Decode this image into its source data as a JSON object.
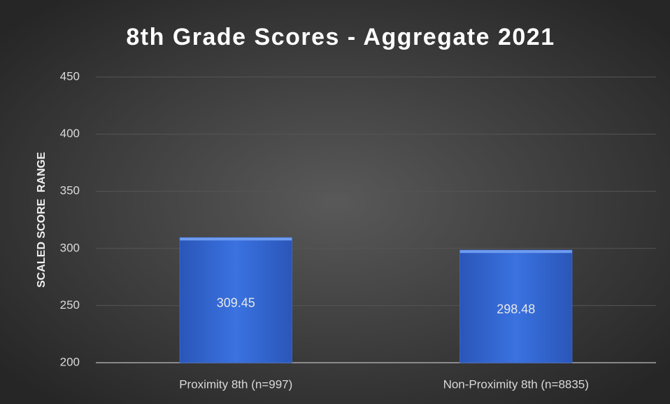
{
  "chart_data": {
    "type": "bar",
    "title": "8th Grade Scores - Aggregate 2021",
    "y_label": "SCALED SCORE  RANGE",
    "categories": [
      "Proximity 8th (n=997)",
      "Non-Proximity 8th (n=8835)"
    ],
    "values": [
      309.45,
      298.48
    ],
    "color": "#3568d4",
    "ylim": [
      200,
      450
    ],
    "yticks": [
      200,
      250,
      300,
      350,
      400,
      450
    ],
    "grid": true,
    "data_labels": true
  }
}
